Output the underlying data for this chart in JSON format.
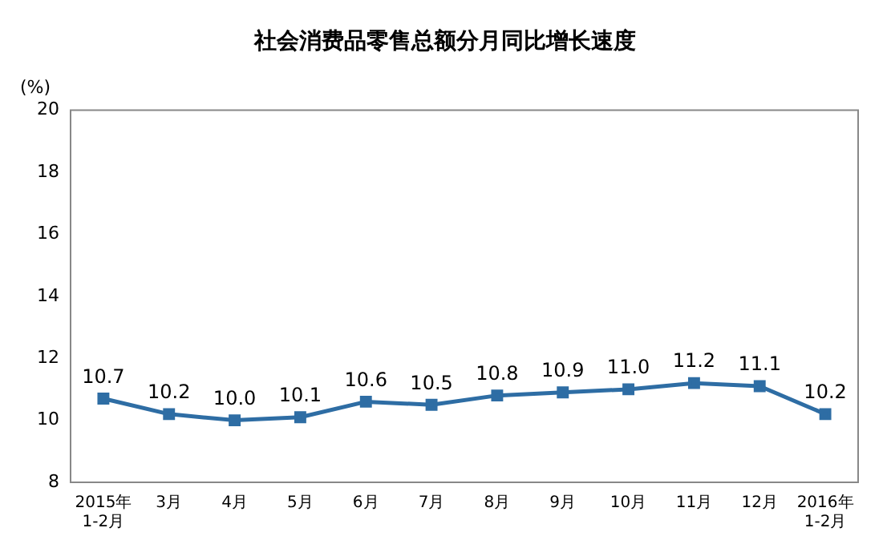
{
  "chart_data": {
    "type": "line",
    "title": "社会消费品零售总额分月同比增长速度",
    "ylabel": "(%)",
    "categories": [
      "2015年\n1-2月",
      "3月",
      "4月",
      "5月",
      "6月",
      "7月",
      "8月",
      "9月",
      "10月",
      "11月",
      "12月",
      "2016年\n1-2月"
    ],
    "series": [
      {
        "color": "#2e6da4",
        "values": [
          10.7,
          10.2,
          10.0,
          10.1,
          10.6,
          10.5,
          10.8,
          10.9,
          11.0,
          11.2,
          11.1,
          10.2
        ],
        "value_labels": [
          "10.7",
          "10.2",
          "10.0",
          "10.1",
          "10.6",
          "10.5",
          "10.8",
          "10.9",
          "11.0",
          "11.2",
          "11.1",
          "10.2"
        ]
      }
    ],
    "ylim": [
      8,
      20
    ],
    "yticks": [
      8,
      10,
      12,
      14,
      16,
      18,
      20
    ],
    "grid": false,
    "legend": false,
    "marker": "square",
    "line_style": "solid"
  }
}
